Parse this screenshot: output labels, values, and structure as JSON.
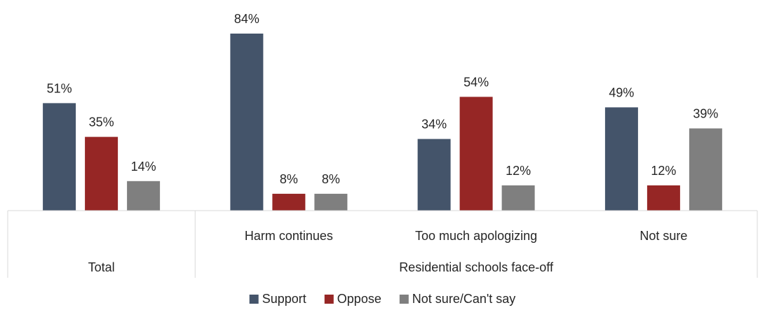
{
  "chart_data": {
    "type": "bar",
    "groups": [
      {
        "label": "Total",
        "categories": [
          ""
        ]
      },
      {
        "label": "Residential schools face-off",
        "categories": [
          "Harm continues",
          "Too much apologizing",
          "Not sure"
        ]
      }
    ],
    "categories": [
      "",
      "Harm continues",
      "Too much apologizing",
      "Not sure"
    ],
    "series": [
      {
        "name": "Support",
        "color": "#44546A",
        "values": [
          51,
          84,
          34,
          49
        ],
        "labels": [
          "51%",
          "84%",
          "34%",
          "49%"
        ]
      },
      {
        "name": "Oppose",
        "color": "#962625",
        "values": [
          35,
          8,
          54,
          12
        ],
        "labels": [
          "35%",
          "8%",
          "54%",
          "12%"
        ]
      },
      {
        "name": "Not sure/Can't say",
        "color": "#7F7F7F",
        "values": [
          14,
          8,
          12,
          39
        ],
        "labels": [
          "14%",
          "8%",
          "12%",
          "39%"
        ]
      }
    ],
    "ylim": [
      0,
      84
    ],
    "legend_position": "bottom",
    "grid": false,
    "axis_color": "#D9D9D9"
  }
}
